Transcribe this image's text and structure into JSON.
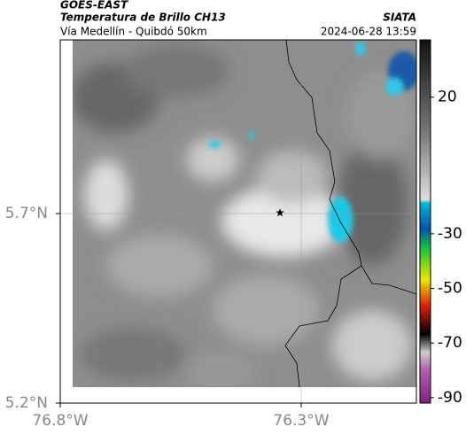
{
  "header": {
    "title": "GOES-EAST",
    "subtitle": "Temperatura de Brillo CH13",
    "source": "SIATA",
    "route": "Vía Medellín - Quibdó 50km",
    "timestamp": "2024-06-28 13:59"
  },
  "chart_data": {
    "type": "map",
    "xlim": [
      -76.8,
      -76.061
    ],
    "ylim": [
      5.2,
      6.158
    ],
    "xticks": [
      {
        "value": -76.8,
        "label": "76.8°W"
      },
      {
        "value": -76.3,
        "label": "76.3°W"
      }
    ],
    "yticks": [
      {
        "value": 5.2,
        "label": "5.2°N"
      },
      {
        "value": 5.7,
        "label": "5.7°N"
      }
    ],
    "grid": true,
    "marker": {
      "lon": -76.344,
      "lat": 5.702
    },
    "colorbar": {
      "lim": [
        -92,
        41
      ],
      "ticks": [
        20,
        -30,
        -50,
        -70,
        -90
      ]
    }
  }
}
